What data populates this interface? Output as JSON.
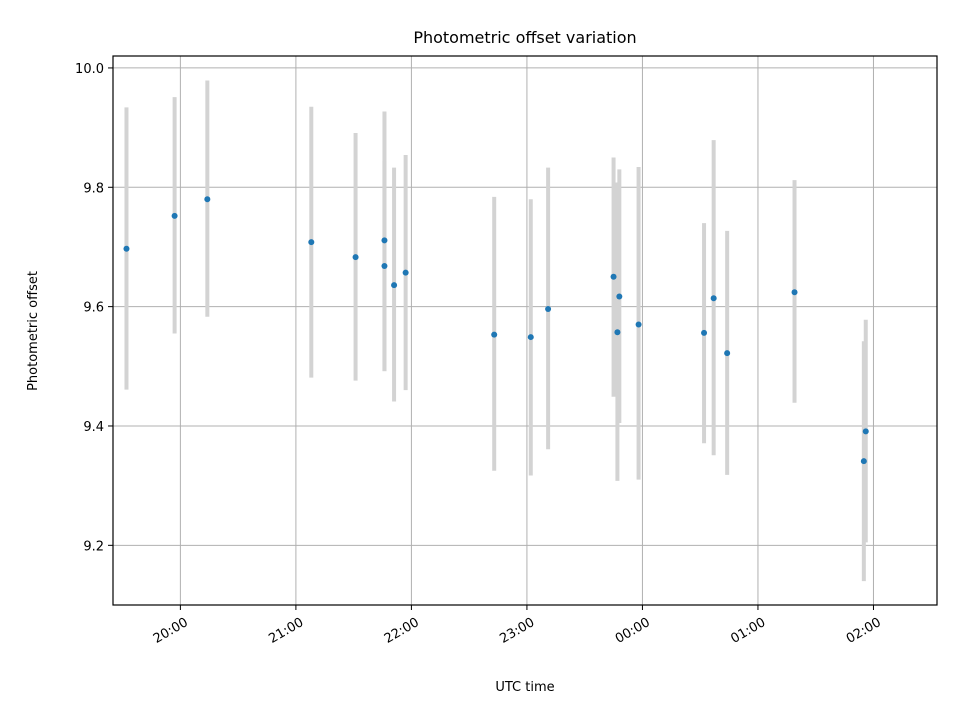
{
  "chart_data": {
    "type": "scatter",
    "title": "Photometric offset variation",
    "xlabel": "UTC time",
    "ylabel": "Photometric offset",
    "x_ticks": [
      "20:00",
      "21:00",
      "22:00",
      "23:00",
      "00:00",
      "01:00",
      "02:00"
    ],
    "y_ticks": [
      "9.2",
      "9.4",
      "9.6",
      "9.8",
      "10.0"
    ],
    "y_tick_values": [
      9.2,
      9.4,
      9.6,
      9.8,
      10.0
    ],
    "x_tick_times": [
      "20:00",
      "21:00",
      "22:00",
      "23:00",
      "00:00",
      "01:00",
      "02:00"
    ],
    "xlim": [
      "19:25",
      "02:33"
    ],
    "ylim": [
      9.1,
      10.02
    ],
    "grid": true,
    "colors": {
      "point": "#1f77b4",
      "errorbar": "#d3d3d3",
      "grid": "#b0b0b0"
    },
    "points": [
      {
        "time": "19:32",
        "y": 9.697,
        "ylo": 9.461,
        "yhi": 9.934
      },
      {
        "time": "19:57",
        "y": 9.752,
        "ylo": 9.555,
        "yhi": 9.951
      },
      {
        "time": "20:14",
        "y": 9.78,
        "ylo": 9.583,
        "yhi": 9.979
      },
      {
        "time": "21:08",
        "y": 9.708,
        "ylo": 9.481,
        "yhi": 9.935
      },
      {
        "time": "21:31",
        "y": 9.683,
        "ylo": 9.476,
        "yhi": 9.891
      },
      {
        "time": "21:46",
        "y": 9.711,
        "ylo": 9.492,
        "yhi": 9.927
      },
      {
        "time": "21:46",
        "y": 9.668,
        "ylo": 9.492,
        "yhi": 9.844
      },
      {
        "time": "21:51",
        "y": 9.636,
        "ylo": 9.441,
        "yhi": 9.833
      },
      {
        "time": "21:57",
        "y": 9.657,
        "ylo": 9.46,
        "yhi": 9.854
      },
      {
        "time": "22:43",
        "y": 9.553,
        "ylo": 9.325,
        "yhi": 9.784
      },
      {
        "time": "23:02",
        "y": 9.549,
        "ylo": 9.317,
        "yhi": 9.78
      },
      {
        "time": "23:11",
        "y": 9.596,
        "ylo": 9.361,
        "yhi": 9.833
      },
      {
        "time": "23:45",
        "y": 9.65,
        "ylo": 9.449,
        "yhi": 9.85
      },
      {
        "time": "23:47",
        "y": 9.557,
        "ylo": 9.308,
        "yhi": 9.808
      },
      {
        "time": "23:48",
        "y": 9.617,
        "ylo": 9.405,
        "yhi": 9.83
      },
      {
        "time": "23:58",
        "y": 9.57,
        "ylo": 9.31,
        "yhi": 9.834
      },
      {
        "time": "00:32",
        "y": 9.556,
        "ylo": 9.371,
        "yhi": 9.74
      },
      {
        "time": "00:37",
        "y": 9.614,
        "ylo": 9.351,
        "yhi": 9.879
      },
      {
        "time": "00:44",
        "y": 9.522,
        "ylo": 9.318,
        "yhi": 9.727
      },
      {
        "time": "01:19",
        "y": 9.624,
        "ylo": 9.439,
        "yhi": 9.812
      },
      {
        "time": "01:55",
        "y": 9.341,
        "ylo": 9.14,
        "yhi": 9.542
      },
      {
        "time": "01:56",
        "y": 9.391,
        "ylo": 9.205,
        "yhi": 9.578
      }
    ]
  }
}
